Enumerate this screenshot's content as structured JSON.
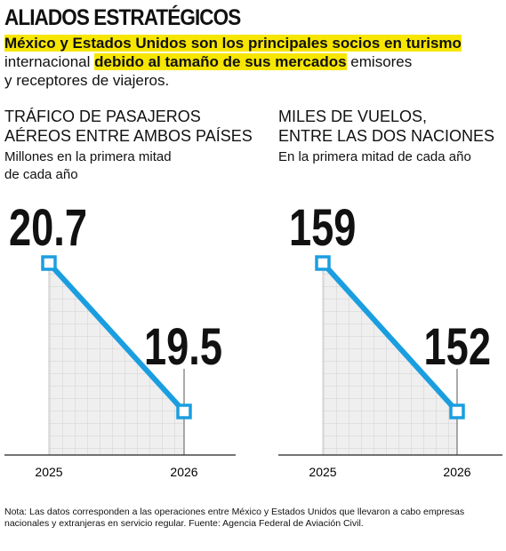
{
  "header": {
    "title": "ALIADOS ESTRATÉGICOS",
    "lead_parts": [
      "México y Estados Unidos son los principales socios en turismo",
      "internacional",
      "debido al tamaño de sus mercados",
      "emisores",
      "y receptores de viajeros."
    ]
  },
  "chart_data": [
    {
      "type": "line",
      "title": [
        "TRÁFICO DE PASAJEROS",
        "AÉREOS ENTRE AMBOS PAÍSES"
      ],
      "subtitle": [
        "Millones en la primera mitad",
        "de cada año"
      ],
      "categories": [
        "2025",
        "2026"
      ],
      "values": [
        20.7,
        19.5
      ],
      "color": "#1a9ee0"
    },
    {
      "type": "line",
      "title": [
        "MILES DE VUELOS,",
        "ENTRE LAS DOS NACIONES"
      ],
      "subtitle": [
        "En la primera mitad de cada año"
      ],
      "categories": [
        "2025",
        "2026"
      ],
      "values": [
        159,
        152
      ],
      "color": "#1a9ee0"
    }
  ],
  "note": "Nota: Las datos corresponden a las operaciones entre México y Estados Unidos que llevaron a cabo empresas nacionales y extranjeras en servicio regular. Fuente: Agencia Federal de Aviación Civil."
}
